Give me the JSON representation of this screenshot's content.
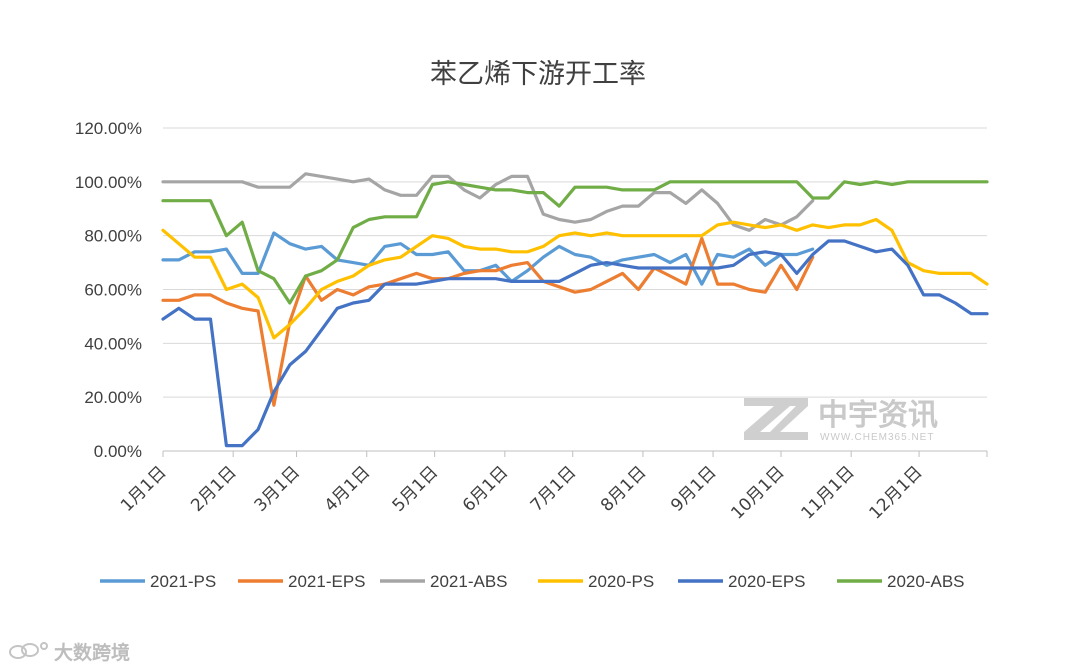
{
  "chart_data": {
    "type": "line",
    "title": "苯乙烯下游开工率",
    "xlabel": "",
    "ylabel": "",
    "ylim": [
      0,
      120
    ],
    "ytick_labels": [
      "0.00%",
      "20.00%",
      "40.00%",
      "60.00%",
      "80.00%",
      "100.00%",
      "120.00%"
    ],
    "xlim": [
      1,
      365
    ],
    "xticks": [
      {
        "label": "1月1日",
        "day": 1
      },
      {
        "label": "2月1日",
        "day": 32
      },
      {
        "label": "3月1日",
        "day": 60
      },
      {
        "label": "4月1日",
        "day": 91
      },
      {
        "label": "5月1日",
        "day": 121
      },
      {
        "label": "6月1日",
        "day": 152
      },
      {
        "label": "7月1日",
        "day": 182
      },
      {
        "label": "8月1日",
        "day": 213
      },
      {
        "label": "9月1日",
        "day": 244
      },
      {
        "label": "10月1日",
        "day": 274
      },
      {
        "label": "11月1日",
        "day": 305
      },
      {
        "label": "12月1日",
        "day": 335
      }
    ],
    "grid": true,
    "legend_position": "bottom",
    "series": [
      {
        "name": "2021-PS",
        "color": "#5b9bd5",
        "x": [
          1,
          8,
          15,
          22,
          29,
          36,
          43,
          50,
          57,
          64,
          71,
          78,
          85,
          92,
          99,
          106,
          113,
          120,
          127,
          134,
          141,
          148,
          155,
          162,
          169,
          176,
          183,
          190,
          197,
          204,
          211,
          218,
          225,
          232,
          239,
          246,
          253,
          260,
          267,
          274,
          281,
          288
        ],
        "y": [
          71,
          71,
          74,
          74,
          75,
          66,
          66,
          81,
          77,
          75,
          76,
          71,
          70,
          69,
          76,
          77,
          73,
          73,
          74,
          67,
          67,
          69,
          63,
          67,
          72,
          76,
          73,
          72,
          69,
          71,
          72,
          73,
          70,
          73,
          62,
          73,
          72,
          75,
          69,
          73,
          73,
          75
        ]
      },
      {
        "name": "2021-EPS",
        "color": "#ed7d31",
        "x": [
          1,
          8,
          15,
          22,
          29,
          36,
          43,
          50,
          57,
          64,
          71,
          78,
          85,
          92,
          99,
          106,
          113,
          120,
          127,
          134,
          141,
          148,
          155,
          162,
          169,
          176,
          183,
          190,
          197,
          204,
          211,
          218,
          225,
          232,
          239,
          246,
          253,
          260,
          267,
          274,
          281,
          288
        ],
        "y": [
          56,
          56,
          58,
          58,
          55,
          53,
          52,
          17,
          48,
          65,
          56,
          60,
          58,
          61,
          62,
          64,
          66,
          64,
          64,
          66,
          67,
          67,
          69,
          70,
          63,
          61,
          59,
          60,
          63,
          66,
          60,
          68,
          65,
          62,
          79,
          62,
          62,
          60,
          59,
          69,
          60,
          72
        ]
      },
      {
        "name": "2021-ABS",
        "color": "#a5a5a5",
        "x": [
          1,
          8,
          15,
          22,
          29,
          36,
          43,
          50,
          57,
          64,
          71,
          78,
          85,
          92,
          99,
          106,
          113,
          120,
          127,
          134,
          141,
          148,
          155,
          162,
          169,
          176,
          183,
          190,
          197,
          204,
          211,
          218,
          225,
          232,
          239,
          246,
          253,
          260,
          267,
          274,
          281,
          288
        ],
        "y": [
          100,
          100,
          100,
          100,
          100,
          100,
          98,
          98,
          98,
          103,
          102,
          101,
          100,
          101,
          97,
          95,
          95,
          102,
          102,
          97,
          94,
          99,
          102,
          102,
          88,
          86,
          85,
          86,
          89,
          91,
          91,
          96,
          96,
          92,
          97,
          92,
          84,
          82,
          86,
          84,
          87,
          93
        ]
      },
      {
        "name": "2020-PS",
        "color": "#ffc000",
        "x": [
          1,
          8,
          15,
          22,
          29,
          36,
          43,
          50,
          57,
          64,
          71,
          78,
          85,
          92,
          99,
          106,
          113,
          120,
          127,
          134,
          141,
          148,
          155,
          162,
          169,
          176,
          183,
          190,
          197,
          204,
          211,
          218,
          225,
          232,
          239,
          246,
          253,
          260,
          267,
          274,
          281,
          288,
          295,
          302,
          309,
          316,
          323,
          330,
          337,
          344,
          351,
          358,
          365
        ],
        "y": [
          82,
          77,
          72,
          72,
          60,
          62,
          57,
          42,
          47,
          53,
          60,
          63,
          65,
          69,
          71,
          72,
          76,
          80,
          79,
          76,
          75,
          75,
          74,
          74,
          76,
          80,
          81,
          80,
          81,
          80,
          80,
          80,
          80,
          80,
          80,
          84,
          85,
          84,
          83,
          84,
          82,
          84,
          83,
          84,
          84,
          86,
          82,
          70,
          67,
          66,
          66,
          66,
          62
        ]
      },
      {
        "name": "2020-EPS",
        "color": "#4472c4",
        "x": [
          1,
          8,
          15,
          22,
          29,
          36,
          43,
          50,
          57,
          64,
          71,
          78,
          85,
          92,
          99,
          106,
          113,
          120,
          127,
          134,
          141,
          148,
          155,
          162,
          169,
          176,
          183,
          190,
          197,
          204,
          211,
          218,
          225,
          232,
          239,
          246,
          253,
          260,
          267,
          274,
          281,
          288,
          295,
          302,
          309,
          316,
          323,
          330,
          337,
          344,
          351,
          358,
          365
        ],
        "y": [
          49,
          53,
          49,
          49,
          2,
          2,
          8,
          22,
          32,
          37,
          45,
          53,
          55,
          56,
          62,
          62,
          62,
          63,
          64,
          64,
          64,
          64,
          63,
          63,
          63,
          63,
          66,
          69,
          70,
          69,
          68,
          68,
          68,
          68,
          68,
          68,
          69,
          73,
          74,
          73,
          66,
          73,
          78,
          78,
          76,
          74,
          75,
          69,
          58,
          58,
          55,
          51,
          51
        ]
      },
      {
        "name": "2020-ABS",
        "color": "#70ad47",
        "x": [
          1,
          8,
          15,
          22,
          29,
          36,
          43,
          50,
          57,
          64,
          71,
          78,
          85,
          92,
          99,
          106,
          113,
          120,
          127,
          134,
          141,
          148,
          155,
          162,
          169,
          176,
          183,
          190,
          197,
          204,
          211,
          218,
          225,
          232,
          239,
          246,
          253,
          260,
          267,
          274,
          281,
          288,
          295,
          302,
          309,
          316,
          323,
          330,
          337,
          344,
          351,
          358,
          365
        ],
        "y": [
          93,
          93,
          93,
          93,
          80,
          85,
          67,
          64,
          55,
          65,
          67,
          71,
          83,
          86,
          87,
          87,
          87,
          99,
          100,
          99,
          98,
          97,
          97,
          96,
          96,
          91,
          98,
          98,
          98,
          97,
          97,
          97,
          100,
          100,
          100,
          100,
          100,
          100,
          100,
          100,
          100,
          94,
          94,
          100,
          99,
          100,
          99,
          100,
          100,
          100,
          100,
          100,
          100
        ]
      }
    ]
  },
  "watermark": {
    "logo_text": "中宇资讯",
    "url": "WWW.CHEM365.NET",
    "logo_mark": "ZZ",
    "color": "#c9c9c9"
  },
  "source_mark": {
    "text": "大数跨境",
    "icon": "chain-link-icon"
  }
}
